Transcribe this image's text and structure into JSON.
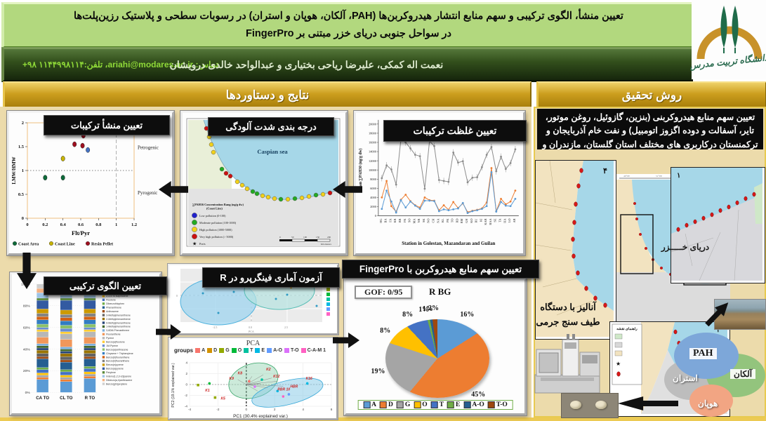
{
  "header": {
    "title_line1": "تعیین منشأ، الگوی ترکیبی و سهم منابع انتشار هیدروکربن‌ها (PAH، آلکان، هوپان و استران) در رسوبات سطحی و پلاستیک رزین‌پلت‌ها",
    "title_line2": "در سواحل جنوبی دریای خزر مبتنی بر FingerPro",
    "authors": "نعمت اله کمکی، علیرضا ریاحی بختیاری و عبدالواحد خالدی درویشان",
    "contact": "تماس: ariahi@modares.ac.ir، تلفن:۱۱۴۴۹۹۸۱۱۴ ۹۸+",
    "logo_title": "دانشگاه تربیت مدرس"
  },
  "results_section": {
    "banner": "نتایج و دستاوردها"
  },
  "method_section": {
    "banner": "روش تحقیق",
    "description": "تعیین سهم منابع هیدروکربنی (بنزین، گازوئیل، روغن موتور، تایر، آسفالت و دوده اگزوز اتومبیل) و نفت خام آذربایجان و ترکمنستان درکاربری های مختلف استان گلستان، مازندران و گیلان",
    "analysis_label_line1": "آنالیز با دستگاه",
    "analysis_label_line2": "طیف سنج جرمی",
    "caspian_label": "دریای خـــــزر",
    "map_legend_title": "راهنمای نقشه",
    "venn": {
      "pah": "PAH",
      "alkane": "آلکان",
      "sterane": "استران",
      "hopane": "هوپان"
    }
  },
  "chart_data": [
    {
      "id": "origin_scatter",
      "type": "scatter",
      "title_overlay": "تعیین منشأ ترکیبات",
      "xlabel": "Flt/Pyr",
      "ylabel": "LMW/HMW",
      "xlim": [
        0,
        1.2
      ],
      "ylim": [
        0,
        2
      ],
      "xticks": [
        0,
        0.2,
        0.4,
        0.6,
        0.8,
        1,
        1.2
      ],
      "yticks": [
        0,
        0.5,
        1,
        1.5,
        2
      ],
      "ref_lines": {
        "horizontal_y": 1,
        "vertical_x": 1
      },
      "quadrant_labels": [
        "Petrogenic",
        "Pyrogenic"
      ],
      "series": [
        {
          "name": "Coast Area",
          "color": "#0e6b3a",
          "points": [
            [
              0.2,
              0.85
            ],
            [
              0.4,
              0.85
            ]
          ]
        },
        {
          "name": "Coast Line",
          "color": "#c8b400",
          "points": [
            [
              0.4,
              1.25
            ]
          ]
        },
        {
          "name": "Resin Pellet",
          "color": "#a01020",
          "points": [
            [
              0.53,
              1.55
            ],
            [
              0.59,
              1.8
            ],
            [
              0.63,
              1.73
            ],
            [
              0.62,
              1.52
            ]
          ]
        }
      ],
      "extra_points": [
        {
          "xy": [
            0.68,
            1.43
          ],
          "color": "#4472c4"
        }
      ]
    },
    {
      "id": "pollution_map",
      "type": "map",
      "title_overlay": "درجه بندی شدت آلودگی",
      "sea_label": "Caspian sea",
      "legend_title_line1": "∑PAH16  Concentration Rang (ng/g dw)",
      "legend_title_line2": "(Coast Line)",
      "legend": [
        {
          "label": "Low pollution (0-100)",
          "color": "#2222cc"
        },
        {
          "label": "Moderate pollution (100-1000)",
          "color": "#22aa22"
        },
        {
          "label": "High pollution (1000-5000)",
          "color": "#f2d21a"
        },
        {
          "label": "Very high pollution (> 5000)",
          "color": "#cc1111"
        },
        {
          "label": "Ports",
          "color": "#000000"
        }
      ],
      "coast_dot_colors": [
        "R",
        "Y",
        "Y",
        "Y",
        "G",
        "R",
        "R",
        "Y",
        "Y",
        "Y",
        "G",
        "G",
        "Y",
        "Y",
        "Y",
        "G",
        "Y",
        "G",
        "Y",
        "Y",
        "G",
        "Y",
        "R"
      ],
      "scale_label": "Kilometers"
    },
    {
      "id": "concentration_line",
      "type": "line",
      "title_overlay": "تعیین غلظت ترکیبات",
      "xlabel": "Station in Golestan, Mazandaran and Guilan",
      "ylabel": "Mean ∑PAH30 (ng/g dw)",
      "ylim": [
        0,
        20000
      ],
      "ytick_step": 2000,
      "categories": [
        "HG",
        "BA",
        "FA",
        "KR",
        "BR",
        "FK",
        "SO",
        "MA",
        "NR",
        "SK",
        "NO",
        "CH",
        "NA",
        "KL",
        "PK",
        "TO",
        "RD",
        "RM",
        "GH",
        "KO",
        "RU",
        "KI",
        "KAB",
        "BAA",
        "SE",
        "TA",
        "HA",
        "LO",
        "AB"
      ],
      "series": [
        {
          "name": "Total",
          "color": "#8c8c8c",
          "error": true,
          "values": [
            8200,
            11000,
            10100,
            6800,
            16700,
            16000,
            14700,
            13300,
            13000,
            5900,
            16300,
            15200,
            7800,
            7600,
            7400,
            13800,
            11600,
            11900,
            7300,
            8300,
            8400,
            10600,
            13300,
            15000,
            9700,
            12900,
            10200,
            11500,
            14500
          ]
        },
        {
          "name": "Series 2",
          "color": "#ed7d31",
          "error": false,
          "values": [
            4000,
            7600,
            2100,
            900,
            3500,
            4600,
            3200,
            2300,
            1800,
            4000,
            3400,
            3300,
            1200,
            2300,
            1300,
            3000,
            1700,
            2700,
            800,
            1100,
            1300,
            1600,
            2900,
            10400,
            1000,
            3700,
            2500,
            3100,
            5500
          ]
        },
        {
          "name": "Series 3",
          "color": "#5b9bd5",
          "error": false,
          "values": [
            1500,
            5500,
            3100,
            700,
            3400,
            1800,
            3100,
            2200,
            1500,
            3300,
            3300,
            3200,
            1000,
            1400,
            1200,
            1400,
            1600,
            2800,
            600,
            1000,
            1200,
            1500,
            2100,
            9500,
            900,
            3000,
            2200,
            2100,
            3700
          ]
        }
      ]
    },
    {
      "id": "composition_bars",
      "type": "bar",
      "stacked": true,
      "title_overlay": "تعیین الگوی ترکیبی",
      "categories": [
        "CA TO",
        "CL TO",
        "R TO"
      ],
      "ytick_labels": [
        "0%",
        "20%",
        "40%",
        "60%",
        "80%",
        "100%"
      ],
      "compounds": [
        "Naphthalene",
        "Acenaphthylene",
        "Acenaphthene",
        "2,3,5TM.Naphtalene",
        "Fluorene",
        "Dibenzothiophen",
        "Phenanthrene",
        "Anthracene",
        "3-Methylphenanthrene",
        "2-Methylphenanthrene",
        "9-Methylphenanthrene",
        "1-Methylphenanthrene",
        "3,6DM-Phenanthrene",
        "Fluoranthene",
        "Pyrene",
        "Benzo(a)fluorene",
        "1M-Pyrene",
        "Benzo(a)anthracene",
        "Chrysene + Triphenylene",
        "Benzo(b)fluoranthene",
        "Benzo(k)fluoranthene",
        "Benzo(e)pyrene",
        "Benzo(a)pyrene",
        "Perylene",
        "Indeno(1,2,3-cd)pyrene",
        "Dibenzo(a,h)anthracene",
        "Benzo(ghi)perylene"
      ],
      "colors": [
        "#5b9bd5",
        "#ed7d31",
        "#a5a5a5",
        "#ffc000",
        "#4472c4",
        "#70ad47",
        "#255e91",
        "#9e480e",
        "#636363",
        "#997300",
        "#264478",
        "#43682b",
        "#7cafdd",
        "#f1975a",
        "#b7b7b7",
        "#ffcd33",
        "#698ed0",
        "#8cc168",
        "#327dc2",
        "#d26012",
        "#848484",
        "#cc9a00",
        "#335aa1",
        "#5a8a39",
        "#9dc3e6",
        "#f4b183",
        "#cfcfcf"
      ],
      "values_pct": {
        "CA TO": [
          12,
          2,
          2,
          2,
          3,
          2,
          8,
          2,
          3,
          3,
          2,
          2,
          2,
          6,
          5,
          2,
          2,
          3,
          4,
          3,
          3,
          4,
          8,
          2,
          5,
          4,
          4
        ],
        "CL TO": [
          10,
          2,
          2,
          2,
          3,
          2,
          7,
          2,
          3,
          3,
          2,
          2,
          2,
          7,
          5,
          2,
          3,
          3,
          4,
          3,
          3,
          4,
          9,
          2,
          6,
          4,
          3
        ],
        "R TO": [
          13,
          2,
          2,
          2,
          3,
          2,
          7,
          2,
          3,
          3,
          2,
          2,
          2,
          6,
          5,
          2,
          2,
          3,
          4,
          3,
          3,
          4,
          8,
          2,
          5,
          5,
          3
        ]
      }
    },
    {
      "id": "fingerpro_r_pca",
      "type": "scatter",
      "title_overlay": "آزمون آماری فینگرپرو در R",
      "subplots": [
        {
          "note": "PCA score plot with two cluster ellipses"
        },
        {
          "title": "PCA",
          "legend_label": "groups",
          "groups": [
            "A",
            "D",
            "G",
            "O",
            "T",
            "E",
            "A-O",
            "T-O",
            "C-A-M 1"
          ],
          "group_colors": [
            "#F8766D",
            "#D39200",
            "#93AA00",
            "#00BA38",
            "#00C19F",
            "#00B9E3",
            "#619CFF",
            "#DB72FB",
            "#FF61C3"
          ],
          "xlabel": "PC1 (30.4% explained var.)",
          "ylabel": "PC2 (19.1% explained var.)",
          "xticks": [
            -4,
            -2,
            0,
            2,
            4,
            6
          ],
          "yticks": [
            -4,
            -2,
            0,
            2,
            4
          ],
          "point_labels": [
            "K1",
            "K2",
            "K5",
            "K8",
            "K9",
            "K12",
            "K16",
            "RBR 10",
            "HBR"
          ]
        }
      ]
    },
    {
      "id": "fingerpro_pie",
      "type": "pie",
      "title_overlay": "تعیین سهم منابع هیدروکربن با FingerPro",
      "gof_label": "GOF: 0/95",
      "chart_label": "R BG",
      "labels": [
        "A",
        "D",
        "G",
        "O",
        "T",
        "E",
        "A-O",
        "T-O"
      ],
      "values": [
        16,
        45,
        19,
        8,
        8,
        1,
        1,
        2
      ],
      "colors": [
        "#5b9bd5",
        "#ed7d31",
        "#a5a5a5",
        "#ffc000",
        "#4472c4",
        "#70ad47",
        "#255e91",
        "#9e480e"
      ]
    }
  ]
}
